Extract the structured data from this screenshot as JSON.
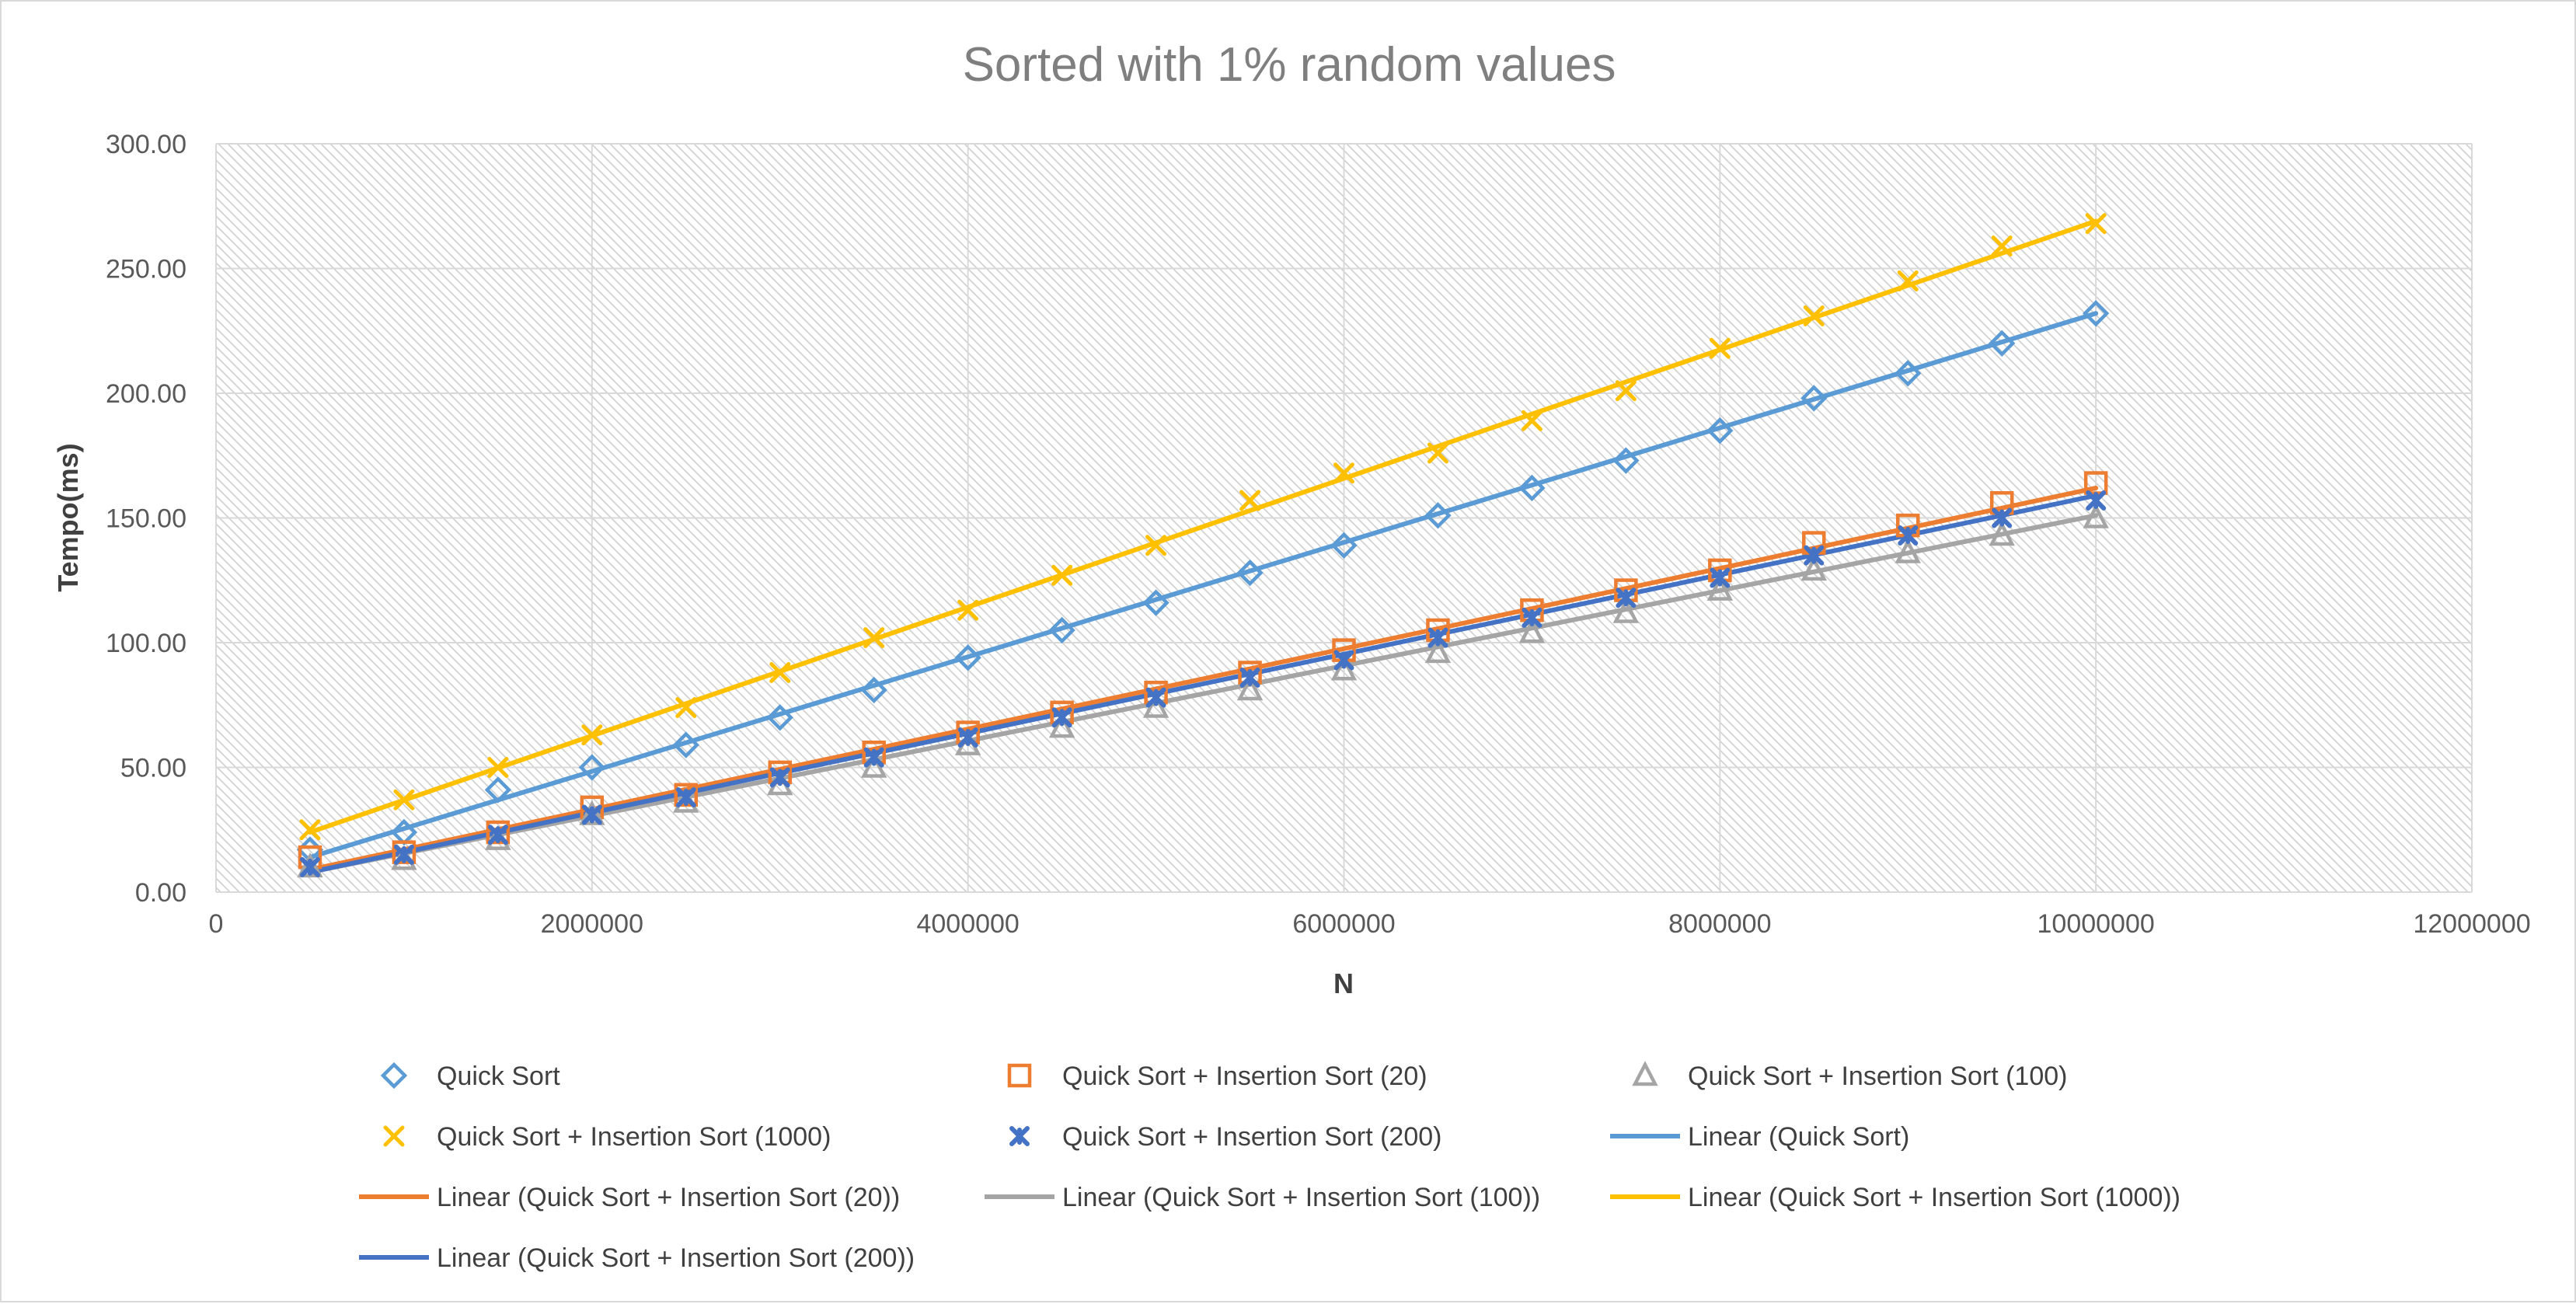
{
  "chart_data": {
    "type": "scatter",
    "title": "Sorted with 1% random values",
    "xlabel": "N",
    "ylabel": "Tempo(ms)",
    "xlim": [
      0,
      12000000
    ],
    "ylim": [
      0,
      300
    ],
    "x_ticks": [
      "0",
      "2000000",
      "4000000",
      "6000000",
      "8000000",
      "10000000",
      "12000000"
    ],
    "y_ticks": [
      "0.00",
      "50.00",
      "100.00",
      "150.00",
      "200.00",
      "250.00",
      "300.00"
    ],
    "grid": true,
    "legend_position": "bottom",
    "x": [
      500000,
      1000000,
      1500000,
      2000000,
      2500000,
      3000000,
      3500000,
      4000000,
      4500000,
      5000000,
      5500000,
      6000000,
      6500000,
      7000000,
      7500000,
      8000000,
      8500000,
      9000000,
      9500000,
      10000000
    ],
    "series": [
      {
        "name": "Quick Sort",
        "marker": "diamond",
        "color": "#5b9bd5",
        "values": [
          17,
          24,
          41,
          50,
          59,
          70,
          81,
          94,
          105,
          116,
          128,
          139,
          151,
          162,
          173,
          185,
          198,
          208,
          220,
          232
        ]
      },
      {
        "name": "Quick Sort + Insertion Sort (20)",
        "marker": "square",
        "color": "#ed7d31",
        "values": [
          14,
          16,
          24,
          34,
          39,
          48,
          56,
          64,
          72,
          80,
          88,
          97,
          105,
          113,
          121,
          129,
          140,
          147,
          156,
          164
        ]
      },
      {
        "name": "Quick Sort + Insertion Sort (100)",
        "marker": "triangle",
        "color": "#a5a5a5",
        "values": [
          10,
          13,
          21,
          31,
          36,
          43,
          50,
          59,
          66,
          74,
          81,
          89,
          96,
          104,
          112,
          121,
          129,
          136,
          143,
          150
        ]
      },
      {
        "name": "Quick Sort + Insertion Sort (1000)",
        "marker": "x",
        "color": "#ffc000",
        "values": [
          25,
          37,
          50,
          63,
          74,
          88,
          102,
          113,
          127,
          139,
          157,
          168,
          176,
          189,
          201,
          218,
          231,
          245,
          259,
          268
        ]
      },
      {
        "name": "Quick Sort + Insertion Sort (200)",
        "marker": "star",
        "color": "#4472c4",
        "values": [
          10,
          15,
          23,
          31,
          38,
          46,
          54,
          62,
          70,
          78,
          86,
          93,
          102,
          110,
          118,
          126,
          135,
          143,
          150,
          157
        ]
      }
    ],
    "trendlines": [
      {
        "name": "Linear (Quick Sort)",
        "color": "#5b9bd5",
        "start": [
          500000,
          14
        ],
        "end": [
          10000000,
          232
        ]
      },
      {
        "name": "Linear (Quick Sort + Insertion Sort (20))",
        "color": "#ed7d31",
        "start": [
          500000,
          9
        ],
        "end": [
          10000000,
          162
        ]
      },
      {
        "name": "Linear (Quick Sort + Insertion Sort (100))",
        "color": "#a5a5a5",
        "start": [
          500000,
          8
        ],
        "end": [
          10000000,
          151
        ]
      },
      {
        "name": "Linear (Quick Sort + Insertion Sort (1000))",
        "color": "#ffc000",
        "start": [
          500000,
          24
        ],
        "end": [
          10000000,
          269
        ]
      },
      {
        "name": "Linear (Quick Sort + Insertion Sort (200))",
        "color": "#4472c4",
        "start": [
          500000,
          8
        ],
        "end": [
          10000000,
          159
        ]
      }
    ],
    "legend": [
      {
        "label": "Quick Sort",
        "kind": "marker",
        "marker": "diamond",
        "color": "#5b9bd5"
      },
      {
        "label": "Quick Sort + Insertion Sort (20)",
        "kind": "marker",
        "marker": "square",
        "color": "#ed7d31"
      },
      {
        "label": "Quick Sort + Insertion Sort (100)",
        "kind": "marker",
        "marker": "triangle",
        "color": "#a5a5a5"
      },
      {
        "label": "Quick Sort + Insertion Sort (1000)",
        "kind": "marker",
        "marker": "x",
        "color": "#ffc000"
      },
      {
        "label": "Quick Sort + Insertion Sort (200)",
        "kind": "marker",
        "marker": "star",
        "color": "#4472c4"
      },
      {
        "label": "Linear (Quick Sort)",
        "kind": "line",
        "color": "#5b9bd5"
      },
      {
        "label": "Linear (Quick Sort + Insertion Sort (20))",
        "kind": "line",
        "color": "#ed7d31"
      },
      {
        "label": "Linear (Quick Sort + Insertion Sort (100))",
        "kind": "line",
        "color": "#a5a5a5"
      },
      {
        "label": "Linear (Quick Sort + Insertion Sort (1000))",
        "kind": "line",
        "color": "#ffc000"
      },
      {
        "label": "Linear (Quick Sort + Insertion Sort (200))",
        "kind": "line",
        "color": "#4472c4"
      }
    ]
  }
}
